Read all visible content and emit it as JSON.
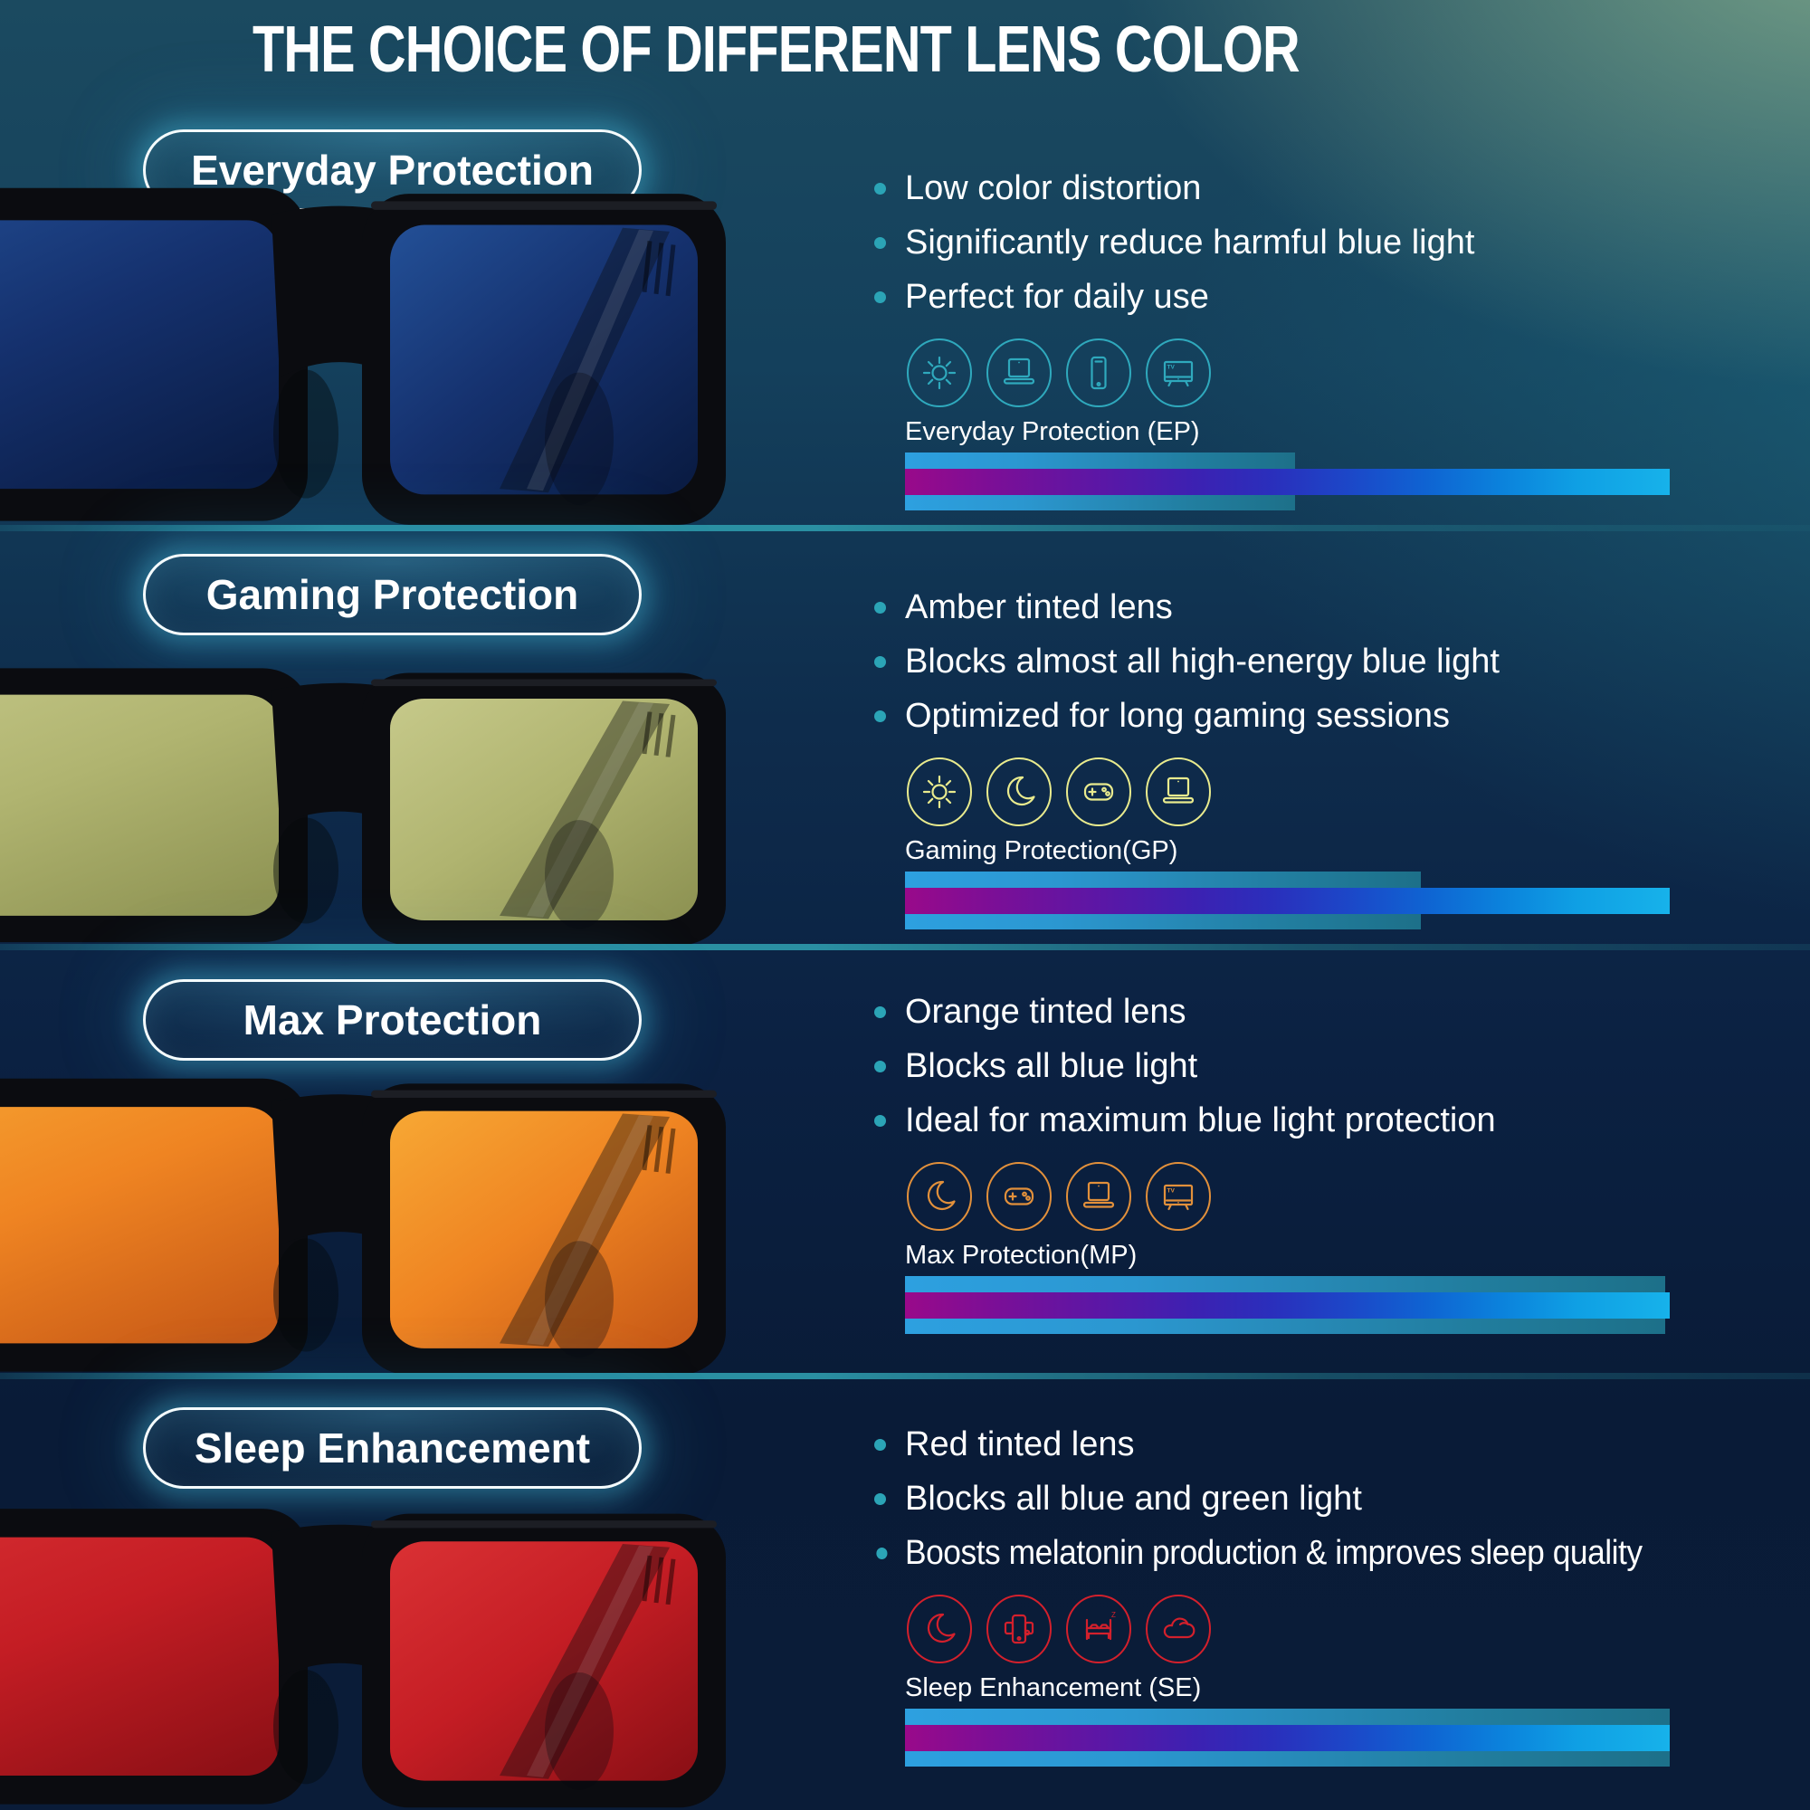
{
  "page": {
    "title": "THE CHOICE OF DIFFERENT LENS COLOR"
  },
  "style": {
    "bullet_dot_color": "#2ba4b6",
    "spectrum_gradient": [
      "#99098a",
      "#5a17a6",
      "#2a2fbc",
      "#0b82dc",
      "#17b2ea"
    ],
    "blocked_overlay_gradient": [
      "#2da0e0",
      "#1d7089"
    ],
    "divider_color": "#2a8fa2",
    "pill_border_color": "#f4fcfe",
    "pill_glow_color": "#46bedc"
  },
  "sections": [
    {
      "pill_label": "Everyday Protection",
      "bullets": [
        "Low color distortion",
        "Significantly reduce harmful blue light",
        "Perfect for daily use"
      ],
      "icons": [
        "sun",
        "laptop",
        "smartphone",
        "tv"
      ],
      "icon_color": "#2fa9bd",
      "spectrum_label": "Everyday Protection (EP)",
      "blocked_percent": 51,
      "lens_colors": [
        "#235097",
        "#15316e",
        "#0a1c44"
      ]
    },
    {
      "pill_label": "Gaming Protection",
      "bullets": [
        "Amber tinted lens",
        "Blocks almost all high-energy blue light",
        "Optimized for long gaming sessions"
      ],
      "icons": [
        "sun",
        "moon",
        "gamepad",
        "laptop"
      ],
      "icon_color": "#e9eb8e",
      "spectrum_label": "Gaming Protection(GP)",
      "blocked_percent": 67.5,
      "lens_colors": [
        "#c6c98a",
        "#b0b470",
        "#8f9454"
      ]
    },
    {
      "pill_label": "Max Protection",
      "bullets": [
        "Orange tinted lens",
        "Blocks all blue light",
        "Ideal for maximum blue light protection"
      ],
      "icons": [
        "moon",
        "gamepad",
        "laptop",
        "tv"
      ],
      "icon_color": "#e2903b",
      "spectrum_label": "Max Protection(MP)",
      "blocked_percent": 99.4,
      "lens_colors": [
        "#f7a834",
        "#ef8422",
        "#c85a17"
      ]
    },
    {
      "pill_label": "Sleep Enhancement",
      "bullets": [
        "Red tinted lens",
        "Blocks all blue and green light",
        "Boosts melatonin production & improves sleep quality"
      ],
      "icons": [
        "moon",
        "phone",
        "bed",
        "cloud"
      ],
      "icon_color": "#d3202c",
      "spectrum_label": "Sleep Enhancement (SE)",
      "blocked_percent": 100,
      "lens_colors": [
        "#da3134",
        "#c41d24",
        "#8e1016"
      ]
    }
  ]
}
